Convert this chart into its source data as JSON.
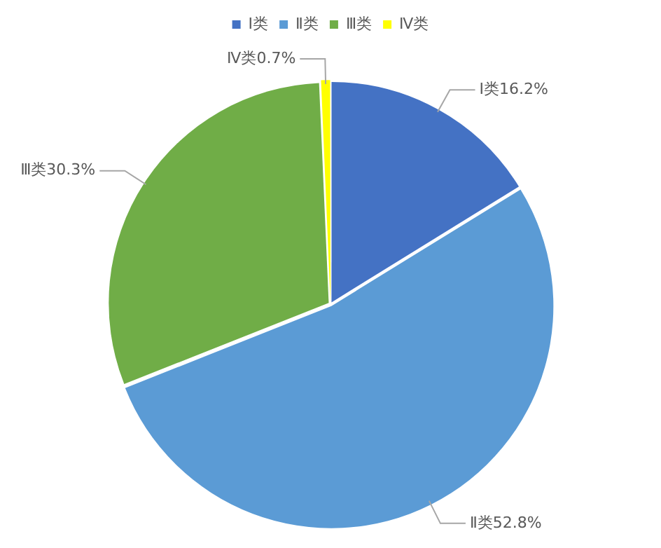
{
  "chart_data": {
    "type": "pie",
    "categories": [
      "Ⅰ类",
      "Ⅱ类",
      "Ⅲ类",
      "Ⅳ类"
    ],
    "values": [
      16.2,
      52.8,
      30.3,
      0.7
    ],
    "colors": [
      "#4472c4",
      "#5b9bd5",
      "#70ad47",
      "#ffff00"
    ],
    "value_labels": [
      "Ⅰ类16.2%",
      "Ⅱ类52.8%",
      "Ⅲ类30.3%",
      "Ⅳ类0.7%"
    ],
    "legend": "top"
  }
}
